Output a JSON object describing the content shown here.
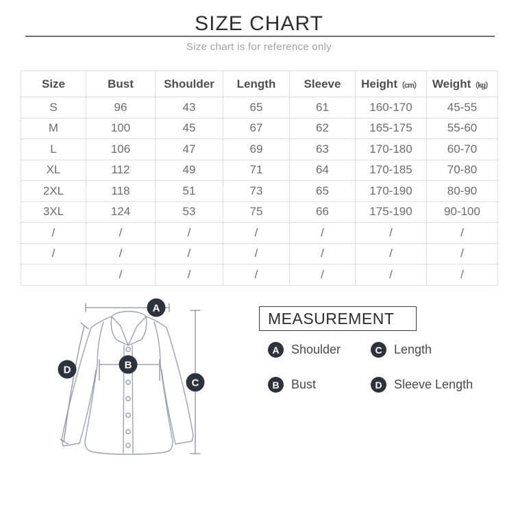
{
  "header": {
    "title": "SIZE CHART",
    "subtitle": "Size chart is for reference only"
  },
  "size_table": {
    "headers": [
      {
        "label": "Size",
        "unit": ""
      },
      {
        "label": "Bust",
        "unit": ""
      },
      {
        "label": "Shoulder",
        "unit": ""
      },
      {
        "label": "Length",
        "unit": ""
      },
      {
        "label": "Sleeve",
        "unit": ""
      },
      {
        "label": "Height",
        "unit": "（cm）"
      },
      {
        "label": "Weight",
        "unit": "（kg）"
      }
    ],
    "rows": [
      [
        "S",
        "96",
        "43",
        "65",
        "61",
        "160-170",
        "45-55"
      ],
      [
        "M",
        "100",
        "45",
        "67",
        "62",
        "165-175",
        "55-60"
      ],
      [
        "L",
        "106",
        "47",
        "69",
        "63",
        "170-180",
        "60-70"
      ],
      [
        "XL",
        "112",
        "49",
        "71",
        "64",
        "170-185",
        "70-80"
      ],
      [
        "2XL",
        "118",
        "51",
        "73",
        "65",
        "170-190",
        "80-90"
      ],
      [
        "3XL",
        "124",
        "53",
        "75",
        "66",
        "175-190",
        "90-100"
      ],
      [
        "/",
        "/",
        "/",
        "/",
        "/",
        "/",
        "/"
      ],
      [
        "/",
        "/",
        "/",
        "/",
        "/",
        "/",
        "/"
      ],
      [
        "",
        "/",
        "/",
        "/",
        "/",
        "/",
        "/"
      ]
    ]
  },
  "measurement": {
    "box_title": "MEASUREMENT",
    "markers": {
      "a": "A",
      "b": "B",
      "c": "C",
      "d": "D"
    },
    "legend": [
      {
        "key": "A",
        "label": "Shoulder"
      },
      {
        "key": "C",
        "label": "Length"
      },
      {
        "key": "B",
        "label": "Bust"
      },
      {
        "key": "D",
        "label": "Sleeve Length"
      }
    ]
  },
  "chart_data": {
    "type": "table",
    "title": "SIZE CHART",
    "subtitle": "Size chart is for reference only",
    "columns": [
      "Size",
      "Bust",
      "Shoulder",
      "Length",
      "Sleeve",
      "Height (cm)",
      "Weight (kg)"
    ],
    "rows": [
      [
        "S",
        96,
        43,
        65,
        61,
        "160-170",
        "45-55"
      ],
      [
        "M",
        100,
        45,
        67,
        62,
        "165-175",
        "55-60"
      ],
      [
        "L",
        106,
        47,
        69,
        63,
        "170-180",
        "60-70"
      ],
      [
        "XL",
        112,
        49,
        71,
        64,
        "170-185",
        "70-80"
      ],
      [
        "2XL",
        118,
        51,
        73,
        65,
        "170-190",
        "80-90"
      ],
      [
        "3XL",
        124,
        53,
        75,
        66,
        "175-190",
        "90-100"
      ],
      [
        "/",
        "/",
        "/",
        "/",
        "/",
        "/",
        "/"
      ],
      [
        "/",
        "/",
        "/",
        "/",
        "/",
        "/",
        "/"
      ],
      [
        "",
        "/",
        "/",
        "/",
        "/",
        "/",
        "/"
      ]
    ],
    "annotations": "Diagram markers: A=Shoulder, B=Bust, C=Length, D=Sleeve Length"
  },
  "colors": {
    "badge": "#2d323c",
    "title_text": "#2e2e2e",
    "subtitle_text": "#a2a2a2",
    "table_header_text": "#4d4d4d",
    "table_value_text": "#6b6b6b",
    "table_border": "#dedede",
    "shirt_outline": "#9aa2ad",
    "measure_line": "#8a8f98",
    "title_rule": "#6f6f6f"
  }
}
